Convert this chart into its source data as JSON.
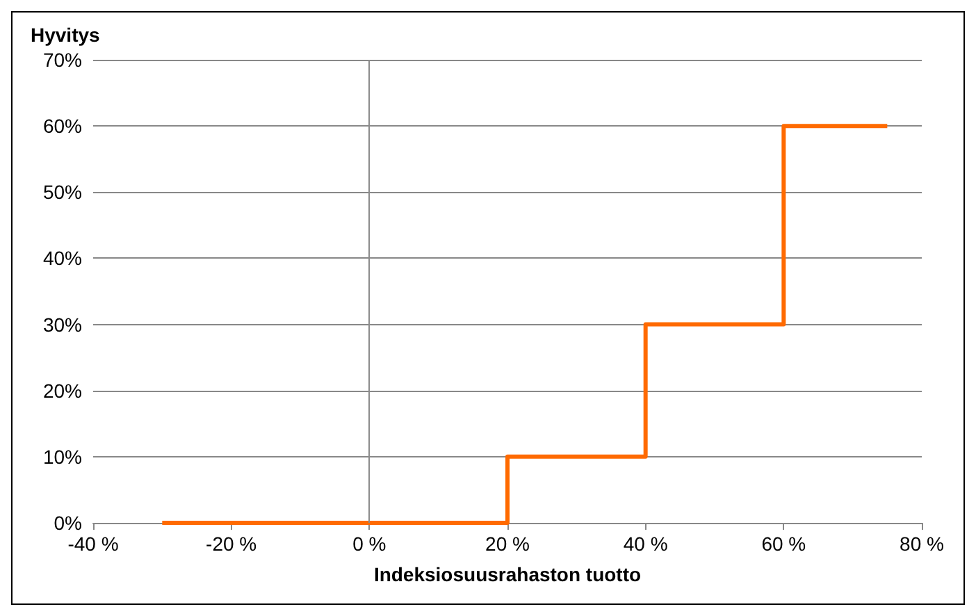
{
  "chart_data": {
    "type": "step",
    "ylabel": "Hyvitys",
    "xlabel": "Indeksiosuusrahaston tuotto",
    "x": [
      -30,
      20,
      40,
      60,
      75
    ],
    "series": [
      {
        "color": "#ff6a00",
        "values": [
          0,
          10,
          30,
          60,
          60
        ]
      }
    ],
    "xlim": [
      -40,
      80
    ],
    "xticks": [
      {
        "value": -40,
        "label": "-40 %"
      },
      {
        "value": -20,
        "label": "-20 %"
      },
      {
        "value": 0,
        "label": "0 %"
      },
      {
        "value": 20,
        "label": "20 %"
      },
      {
        "value": 40,
        "label": "40 %"
      },
      {
        "value": 60,
        "label": "60 %"
      },
      {
        "value": 80,
        "label": "80 %"
      }
    ],
    "ylim": [
      0,
      70
    ],
    "yticks": [
      {
        "value": 0,
        "label": "0%"
      },
      {
        "value": 10,
        "label": "10%"
      },
      {
        "value": 20,
        "label": "20%"
      },
      {
        "value": 30,
        "label": "30%"
      },
      {
        "value": 40,
        "label": "40%"
      },
      {
        "value": 50,
        "label": "50%"
      },
      {
        "value": 60,
        "label": "60%"
      },
      {
        "value": 70,
        "label": "70%"
      }
    ],
    "ref_lines": [
      {
        "axis": "x",
        "value": 0,
        "color": "#8c8c8c"
      }
    ],
    "grid": "y",
    "marker": "none",
    "line_style": "solid"
  }
}
